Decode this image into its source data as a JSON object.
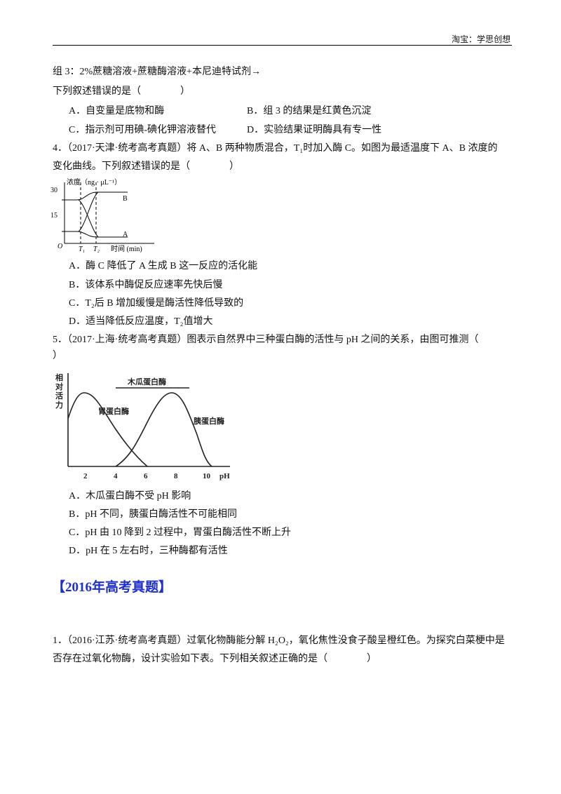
{
  "header": {
    "text": "淘宝：学思创想"
  },
  "lines": {
    "group3": "组 3：2%蔗糖溶液+蔗糖酶溶液+本尼迪特试剂→",
    "q3_stem": "下列叙述错误的是（　　　　）",
    "q3_options": [
      "A．自变量是底物和酶",
      "B．组 3 的结果是红黄色沉淀",
      "C．指示剂可用碘-碘化钾溶液替代",
      "D．实验结果证明酶具有专一性"
    ],
    "q4_stem": [
      "4．（2017·天津·统考高考真题）将 A、B 两种物质混合，T₁时加入酶 C。如图为最适温度下 A、B 浓度的",
      "变化曲线。下列叙述错误的是（　　　　）"
    ],
    "q4_options": [
      "A．酶 C 降低了 A 生成 B 这一反应的活化能",
      "B．该体系中酶促反应速率先快后慢",
      "C．T₂后 B 增加缓慢是酶活性降低导致的",
      "D．适当降低反应温度，T₂值增大"
    ],
    "q5_stem": [
      "5．（2017·上海·统考高考真题）图表示自然界中三种蛋白酶的活性与 pH 之间的关系，由图可推测（",
      "）"
    ],
    "q5_options": [
      "A．木瓜蛋白酶不受 pH 影响",
      "B．pH 不同，胰蛋白酶活性不可能相同",
      "C．pH 由 10 降到 2 过程中，胃蛋白酶活性不断上升",
      "D．pH 在 5 左右时，三种酶都有活性"
    ],
    "section": "【2016年高考真题】",
    "q1_stem": [
      "1．（2016·江苏·统考高考真题）过氧化物酶能分解 H₂O₂，氧化焦性没食子酸呈橙红色。为探究白菜梗中是",
      "否存在过氧化物酶，设计实验如下表。下列相关叙述正确的是（　　　　）"
    ]
  },
  "figure1": {
    "y_title": "浓度（ng · μL⁻¹）",
    "yticks": [
      "30",
      "15"
    ],
    "origin": "O",
    "xticks": [
      "T₁",
      "T₂"
    ],
    "x_title": "时间 (min)",
    "curve_b": "B",
    "curve_a": "A"
  },
  "figure2": {
    "y_title": [
      "相",
      "对",
      "活",
      "力"
    ],
    "xticks": [
      "2",
      "4",
      "6",
      "8",
      "10"
    ],
    "x_title": "pH",
    "papain": "木瓜蛋白酶",
    "pepsin": "胃蛋白酶",
    "trypsin": "胰蛋白酶"
  }
}
